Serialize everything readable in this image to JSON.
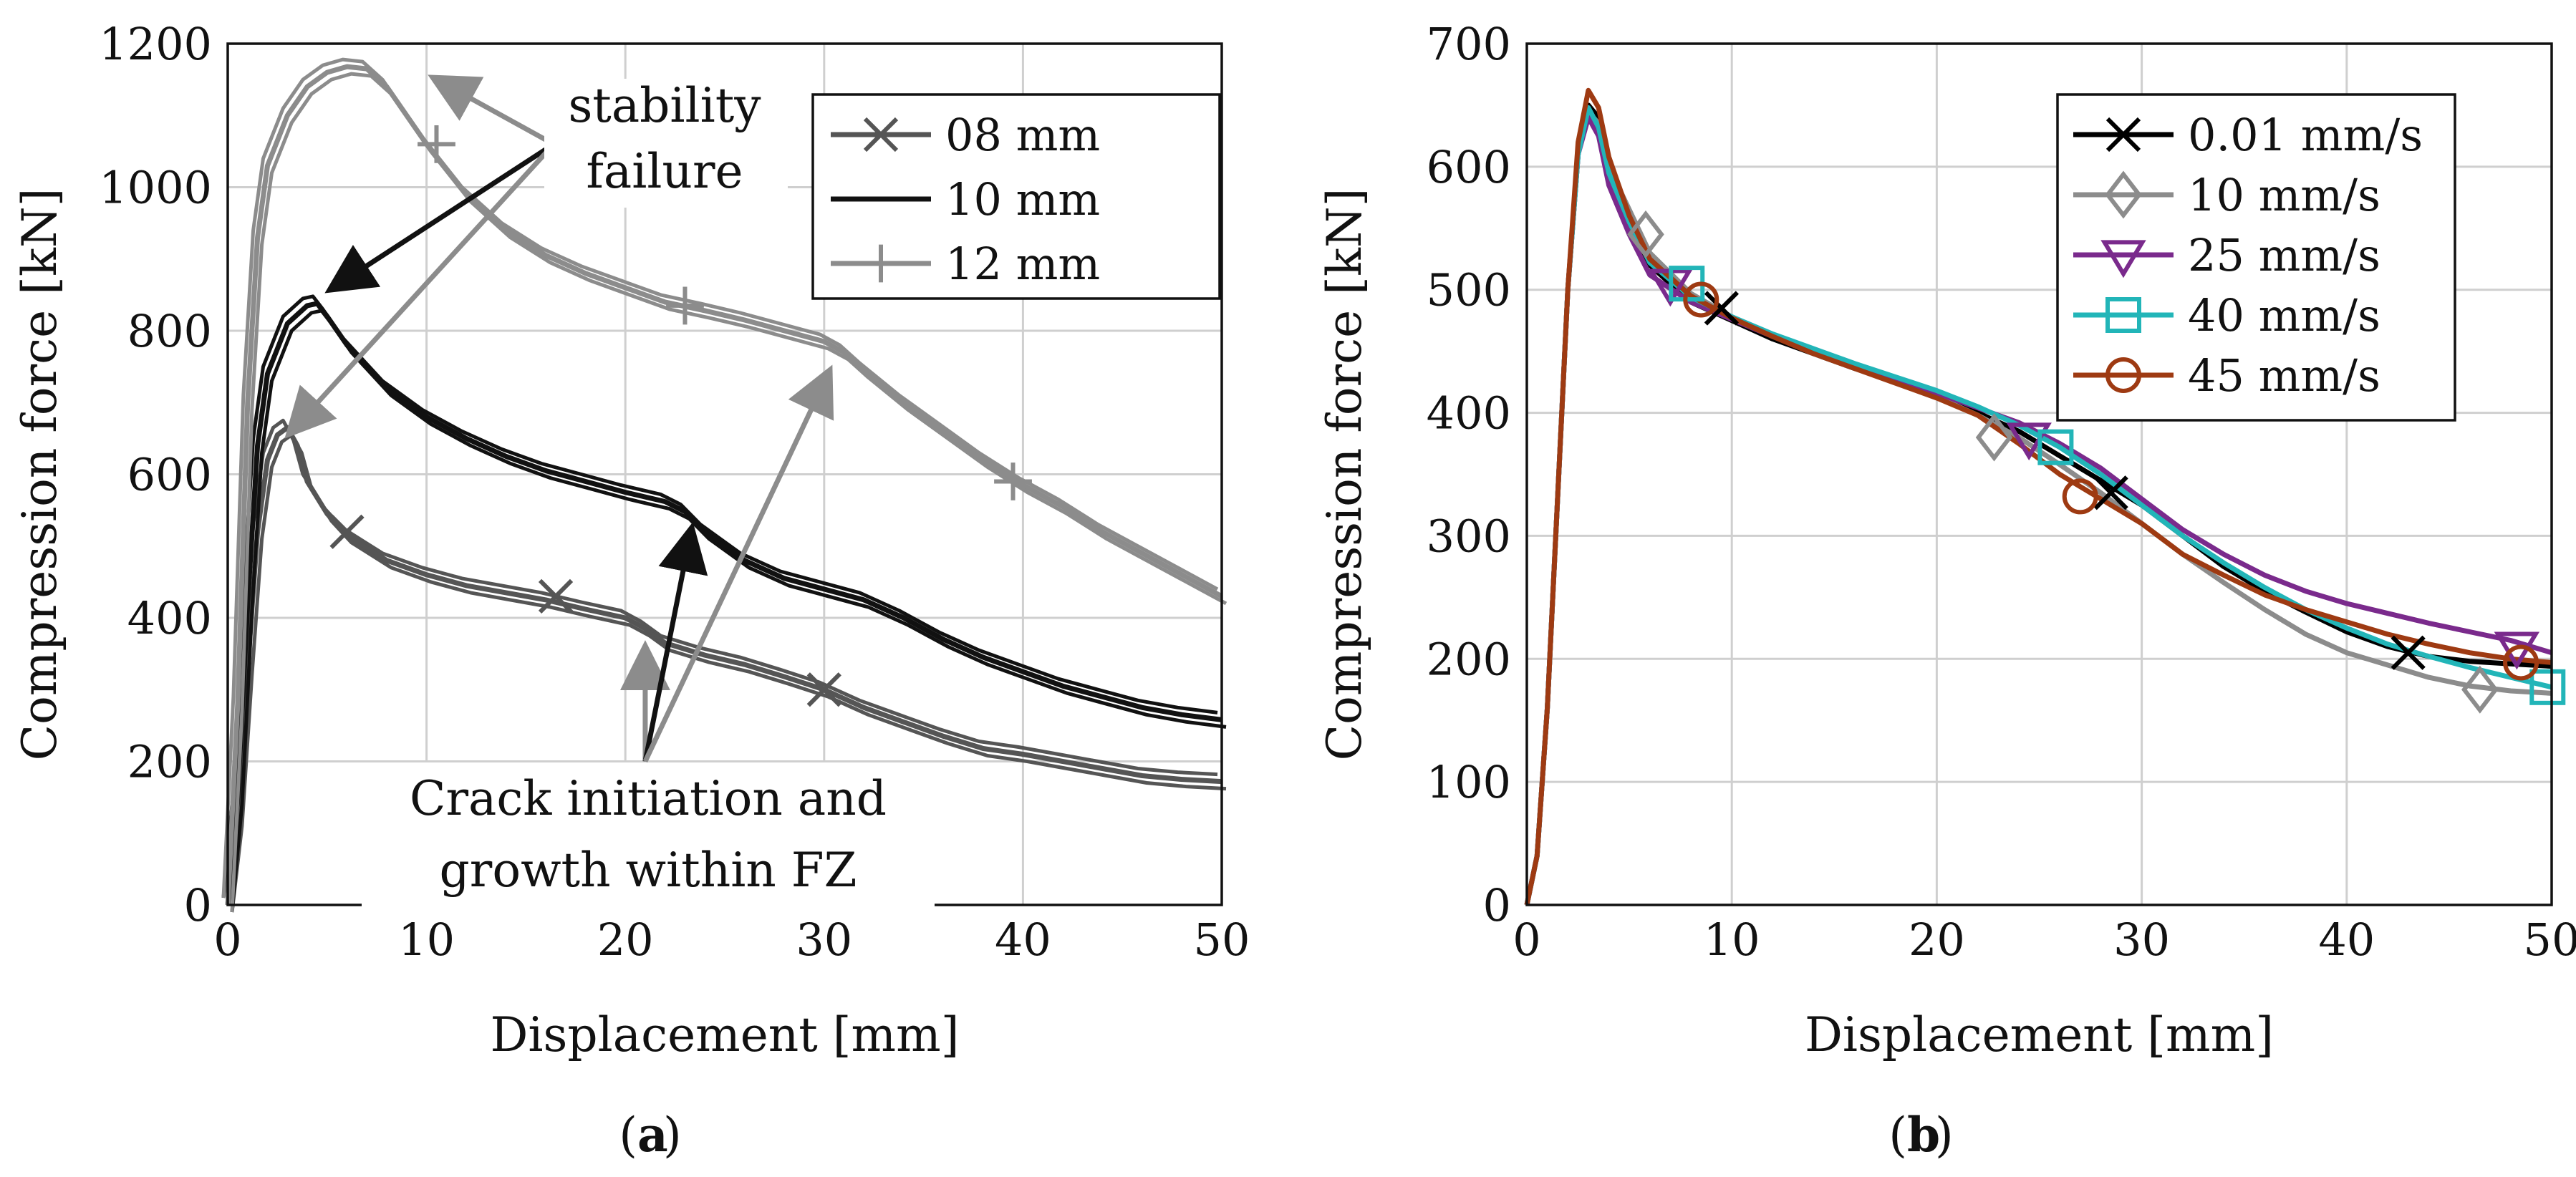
{
  "chart_data": [
    {
      "type": "line",
      "panel": "(a)",
      "caption_letter": "a",
      "xlabel": "Displacement [mm]",
      "ylabel": "Compression force [kN]",
      "xlim": [
        0,
        50
      ],
      "ylim": [
        0,
        1200
      ],
      "xticks": [
        0,
        10,
        20,
        30,
        40,
        50
      ],
      "yticks": [
        0,
        200,
        400,
        600,
        800,
        1000,
        1200
      ],
      "grid": true,
      "legend_position": "top-right",
      "annotations": {
        "stability": [
          "stability",
          "failure"
        ],
        "crack": [
          "Crack initiation and",
          "growth within FZ"
        ]
      },
      "series": [
        {
          "name": "08 mm",
          "color": "#555555",
          "marker": "x",
          "x": [
            0,
            0.5,
            1,
            1.5,
            2,
            2.5,
            3,
            3.5,
            4,
            5,
            6,
            8,
            10,
            12,
            14,
            16,
            18,
            20,
            21,
            22,
            24,
            26,
            28,
            30,
            32,
            34,
            36,
            38,
            40,
            42,
            44,
            46,
            48,
            50
          ],
          "values": [
            0,
            120,
            330,
            520,
            620,
            655,
            665,
            640,
            590,
            545,
            515,
            480,
            460,
            445,
            435,
            425,
            412,
            400,
            385,
            365,
            348,
            335,
            318,
            300,
            275,
            255,
            235,
            218,
            210,
            200,
            190,
            180,
            175,
            172
          ],
          "markers_x": [
            6,
            16.5,
            30
          ],
          "markers_y": [
            520,
            430,
            300
          ]
        },
        {
          "name": "10 mm",
          "color": "#111111",
          "marker": "none",
          "x": [
            0,
            0.5,
            1,
            1.5,
            2,
            3,
            4,
            4.5,
            5,
            6,
            8,
            10,
            12,
            14,
            16,
            18,
            20,
            22,
            23,
            24,
            26,
            28,
            30,
            32,
            34,
            36,
            38,
            40,
            42,
            44,
            46,
            48,
            50
          ],
          "values": [
            0,
            150,
            420,
            640,
            740,
            810,
            835,
            838,
            820,
            780,
            720,
            680,
            650,
            625,
            605,
            590,
            575,
            562,
            548,
            520,
            480,
            455,
            440,
            425,
            400,
            370,
            345,
            325,
            305,
            290,
            275,
            265,
            258
          ],
          "markers_x": [],
          "markers_y": []
        },
        {
          "name": "12 mm",
          "color": "#8c8c8c",
          "marker": "+",
          "x": [
            0,
            0.5,
            1,
            1.5,
            2,
            3,
            4,
            5,
            6,
            7,
            8,
            9,
            10,
            12,
            14,
            16,
            18,
            20,
            22,
            24,
            26,
            28,
            30,
            31,
            32,
            34,
            36,
            38,
            40,
            42,
            44,
            46,
            48,
            50
          ],
          "values": [
            0,
            280,
            700,
            930,
            1030,
            1100,
            1140,
            1160,
            1168,
            1165,
            1140,
            1100,
            1060,
            990,
            940,
            905,
            880,
            860,
            840,
            828,
            815,
            800,
            785,
            770,
            745,
            700,
            660,
            620,
            585,
            555,
            520,
            490,
            460,
            430
          ],
          "markers_x": [
            10.5,
            23,
            39.5
          ],
          "markers_y": [
            1060,
            835,
            590
          ]
        }
      ]
    },
    {
      "type": "line",
      "panel": "(b)",
      "caption_letter": "b",
      "xlabel": "Displacement [mm]",
      "ylabel": "Compression force [kN]",
      "xlim": [
        0,
        50
      ],
      "ylim": [
        0,
        700
      ],
      "xticks": [
        0,
        10,
        20,
        30,
        40,
        50
      ],
      "yticks": [
        0,
        100,
        200,
        300,
        400,
        500,
        600,
        700
      ],
      "grid": true,
      "legend_position": "top-right",
      "series": [
        {
          "name": "0.01 mm/s",
          "color": "#000000",
          "marker": "x",
          "x": [
            0,
            0.5,
            1,
            1.5,
            2,
            2.5,
            3,
            3.5,
            4,
            5,
            6,
            8,
            10,
            12,
            14,
            16,
            18,
            20,
            22,
            24,
            26,
            28,
            30,
            32,
            34,
            36,
            38,
            40,
            42,
            44,
            46,
            48,
            50
          ],
          "values": [
            0,
            40,
            160,
            330,
            500,
            610,
            650,
            640,
            600,
            555,
            520,
            490,
            475,
            460,
            448,
            436,
            425,
            413,
            400,
            385,
            365,
            345,
            325,
            300,
            275,
            255,
            238,
            222,
            210,
            202,
            198,
            196,
            194
          ],
          "markers_x": [
            9.5,
            28.5,
            43
          ],
          "markers_y": [
            485,
            335,
            205
          ]
        },
        {
          "name": "10 mm/s",
          "color": "#8c8c8c",
          "marker": "diamond",
          "x": [
            0,
            0.5,
            1,
            1.5,
            2,
            2.5,
            3,
            3.5,
            4,
            5,
            6,
            8,
            10,
            12,
            14,
            16,
            18,
            20,
            22,
            24,
            26,
            28,
            30,
            32,
            34,
            36,
            38,
            40,
            42,
            44,
            46,
            48,
            50
          ],
          "values": [
            0,
            40,
            160,
            330,
            500,
            610,
            645,
            635,
            600,
            565,
            530,
            497,
            478,
            462,
            449,
            437,
            425,
            413,
            398,
            380,
            358,
            335,
            310,
            285,
            262,
            240,
            220,
            205,
            195,
            185,
            178,
            174,
            172
          ],
          "markers_x": [
            5.8,
            22.8,
            46.5
          ],
          "markers_y": [
            545,
            380,
            175
          ]
        },
        {
          "name": "25 mm/s",
          "color": "#7a2a8c",
          "marker": "triangle-down",
          "x": [
            0,
            0.5,
            1,
            1.5,
            2,
            2.5,
            3,
            3.5,
            4,
            5,
            6,
            8,
            10,
            12,
            14,
            16,
            18,
            20,
            22,
            24,
            26,
            28,
            30,
            32,
            34,
            36,
            38,
            40,
            42,
            44,
            46,
            48,
            50
          ],
          "values": [
            0,
            40,
            160,
            330,
            500,
            610,
            640,
            625,
            585,
            545,
            512,
            490,
            476,
            462,
            450,
            438,
            427,
            416,
            404,
            392,
            375,
            355,
            330,
            305,
            285,
            268,
            255,
            245,
            237,
            229,
            222,
            215,
            205
          ],
          "markers_x": [
            7,
            24.5,
            48.3
          ],
          "markers_y": [
            505,
            380,
            210
          ]
        },
        {
          "name": "40 mm/s",
          "color": "#22b5b8",
          "marker": "square",
          "x": [
            0,
            0.5,
            1,
            1.5,
            2,
            2.5,
            3,
            3.5,
            4,
            5,
            6,
            8,
            10,
            12,
            14,
            16,
            18,
            20,
            22,
            24,
            26,
            28,
            30,
            32,
            34,
            36,
            38,
            40,
            42,
            44,
            46,
            48,
            50
          ],
          "values": [
            0,
            40,
            160,
            330,
            500,
            610,
            648,
            632,
            595,
            555,
            522,
            494,
            478,
            464,
            452,
            440,
            429,
            418,
            405,
            390,
            372,
            350,
            325,
            300,
            278,
            258,
            240,
            225,
            212,
            202,
            193,
            185,
            177
          ],
          "markers_x": [
            7.8,
            25.8,
            49.8
          ],
          "markers_y": [
            505,
            372,
            177
          ]
        },
        {
          "name": "45 mm/s",
          "color": "#9e3a12",
          "marker": "circle",
          "x": [
            0,
            0.5,
            1,
            1.5,
            2,
            2.5,
            3,
            3.5,
            4,
            5,
            6,
            8,
            10,
            12,
            14,
            16,
            18,
            20,
            22,
            24,
            26,
            28,
            30,
            32,
            34,
            36,
            38,
            40,
            42,
            44,
            46,
            48,
            50
          ],
          "values": [
            0,
            40,
            160,
            330,
            500,
            620,
            662,
            648,
            608,
            560,
            525,
            495,
            477,
            462,
            448,
            436,
            424,
            412,
            398,
            375,
            350,
            330,
            310,
            285,
            268,
            252,
            240,
            230,
            220,
            212,
            205,
            200,
            197
          ],
          "markers_x": [
            8.5,
            27,
            48.5
          ],
          "markers_y": [
            492,
            332,
            197
          ]
        }
      ]
    }
  ]
}
